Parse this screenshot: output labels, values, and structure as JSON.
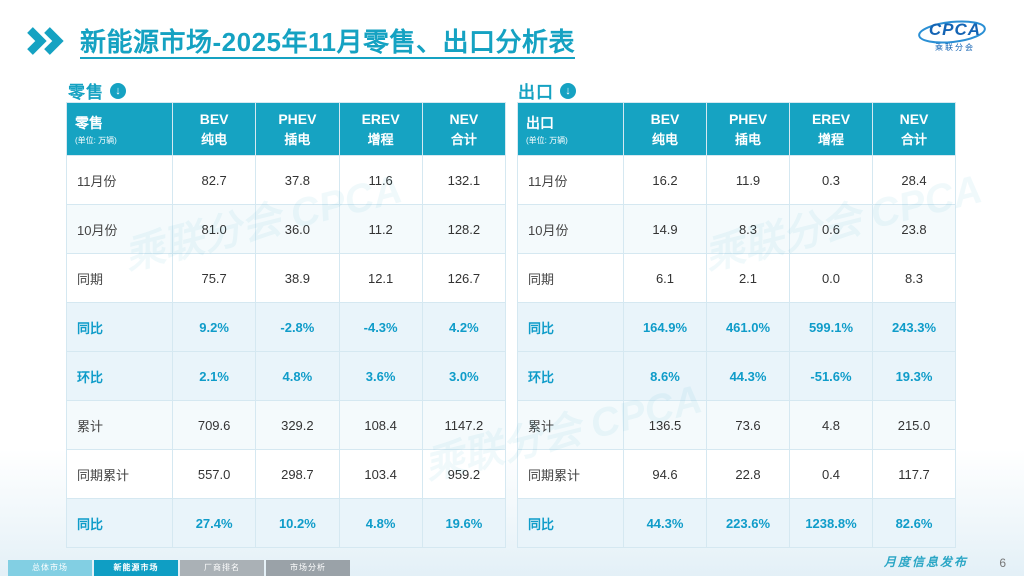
{
  "slide": {
    "title": "新能源市场-2025年11月零售、出口分析表",
    "footer_note": "月度信息发布",
    "page_number": "6"
  },
  "logo": {
    "name": "CPCA",
    "caption": "乘联分会"
  },
  "watermark": {
    "text": "乘联分会 CPCA"
  },
  "colors": {
    "teal_header": "#16a3c2",
    "emphasis_text": "#0f9cc9",
    "stripe": "#e9f4fa",
    "logo_blue": "#1464b4"
  },
  "sections": [
    {
      "label": "零售"
    },
    {
      "label": "出口"
    }
  ],
  "tables": [
    {
      "section_title": "零售",
      "corner": {
        "title": "零售",
        "unit": "(单位: 万辆)"
      },
      "columns": [
        {
          "line1": "BEV",
          "line2": "纯电"
        },
        {
          "line1": "PHEV",
          "line2": "插电"
        },
        {
          "line1": "EREV",
          "line2": "增程"
        },
        {
          "line1": "NEV",
          "line2": "合计"
        }
      ],
      "rows": [
        {
          "label": "11月份",
          "values": [
            "82.7",
            "37.8",
            "11.6",
            "132.1"
          ],
          "emphasis": false
        },
        {
          "label": "10月份",
          "values": [
            "81.0",
            "36.0",
            "11.2",
            "128.2"
          ],
          "emphasis": false
        },
        {
          "label": "同期",
          "values": [
            "75.7",
            "38.9",
            "12.1",
            "126.7"
          ],
          "emphasis": false
        },
        {
          "label": "同比",
          "values": [
            "9.2%",
            "-2.8%",
            "-4.3%",
            "4.2%"
          ],
          "emphasis": true
        },
        {
          "label": "环比",
          "values": [
            "2.1%",
            "4.8%",
            "3.6%",
            "3.0%"
          ],
          "emphasis": true
        },
        {
          "label": "累计",
          "values": [
            "709.6",
            "329.2",
            "108.4",
            "1147.2"
          ],
          "emphasis": false
        },
        {
          "label": "同期累计",
          "values": [
            "557.0",
            "298.7",
            "103.4",
            "959.2"
          ],
          "emphasis": false
        },
        {
          "label": "同比",
          "values": [
            "27.4%",
            "10.2%",
            "4.8%",
            "19.6%"
          ],
          "emphasis": true
        }
      ]
    },
    {
      "section_title": "出口",
      "corner": {
        "title": "出口",
        "unit": "(单位: 万辆)"
      },
      "columns": [
        {
          "line1": "BEV",
          "line2": "纯电"
        },
        {
          "line1": "PHEV",
          "line2": "插电"
        },
        {
          "line1": "EREV",
          "line2": "增程"
        },
        {
          "line1": "NEV",
          "line2": "合计"
        }
      ],
      "rows": [
        {
          "label": "11月份",
          "values": [
            "16.2",
            "11.9",
            "0.3",
            "28.4"
          ],
          "emphasis": false
        },
        {
          "label": "10月份",
          "values": [
            "14.9",
            "8.3",
            "0.6",
            "23.8"
          ],
          "emphasis": false
        },
        {
          "label": "同期",
          "values": [
            "6.1",
            "2.1",
            "0.0",
            "8.3"
          ],
          "emphasis": false
        },
        {
          "label": "同比",
          "values": [
            "164.9%",
            "461.0%",
            "599.1%",
            "243.3%"
          ],
          "emphasis": true
        },
        {
          "label": "环比",
          "values": [
            "8.6%",
            "44.3%",
            "-51.6%",
            "19.3%"
          ],
          "emphasis": true
        },
        {
          "label": "累计",
          "values": [
            "136.5",
            "73.6",
            "4.8",
            "215.0"
          ],
          "emphasis": false
        },
        {
          "label": "同期累计",
          "values": [
            "94.6",
            "22.8",
            "0.4",
            "117.7"
          ],
          "emphasis": false
        },
        {
          "label": "同比",
          "values": [
            "44.3%",
            "223.6%",
            "1238.8%",
            "82.6%"
          ],
          "emphasis": true
        }
      ]
    }
  ],
  "nav_tabs": [
    {
      "label": "总体市场",
      "active": false
    },
    {
      "label": "新能源市场",
      "active": true
    },
    {
      "label": "厂商排名",
      "active": false
    },
    {
      "label": "市场分析",
      "active": false
    }
  ],
  "chart_data": [
    {
      "type": "table",
      "title": "零售 (单位: 万辆)",
      "columns": [
        "零售",
        "BEV 纯电",
        "PHEV 插电",
        "EREV 增程",
        "NEV 合计"
      ],
      "rows": [
        [
          "11月份",
          82.7,
          37.8,
          11.6,
          132.1
        ],
        [
          "10月份",
          81.0,
          36.0,
          11.2,
          128.2
        ],
        [
          "同期",
          75.7,
          38.9,
          12.1,
          126.7
        ],
        [
          "同比",
          "9.2%",
          "-2.8%",
          "-4.3%",
          "4.2%"
        ],
        [
          "环比",
          "2.1%",
          "4.8%",
          "3.6%",
          "3.0%"
        ],
        [
          "累计",
          709.6,
          329.2,
          108.4,
          1147.2
        ],
        [
          "同期累计",
          557.0,
          298.7,
          103.4,
          959.2
        ],
        [
          "同比",
          "27.4%",
          "10.2%",
          "4.8%",
          "19.6%"
        ]
      ]
    },
    {
      "type": "table",
      "title": "出口 (单位: 万辆)",
      "columns": [
        "出口",
        "BEV 纯电",
        "PHEV 插电",
        "EREV 增程",
        "NEV 合计"
      ],
      "rows": [
        [
          "11月份",
          16.2,
          11.9,
          0.3,
          28.4
        ],
        [
          "10月份",
          14.9,
          8.3,
          0.6,
          23.8
        ],
        [
          "同期",
          6.1,
          2.1,
          0.0,
          8.3
        ],
        [
          "同比",
          "164.9%",
          "461.0%",
          "599.1%",
          "243.3%"
        ],
        [
          "环比",
          "8.6%",
          "44.3%",
          "-51.6%",
          "19.3%"
        ],
        [
          "累计",
          136.5,
          73.6,
          4.8,
          215.0
        ],
        [
          "同期累计",
          94.6,
          22.8,
          0.4,
          117.7
        ],
        [
          "同比",
          "44.3%",
          "223.6%",
          "1238.8%",
          "82.6%"
        ]
      ]
    }
  ]
}
